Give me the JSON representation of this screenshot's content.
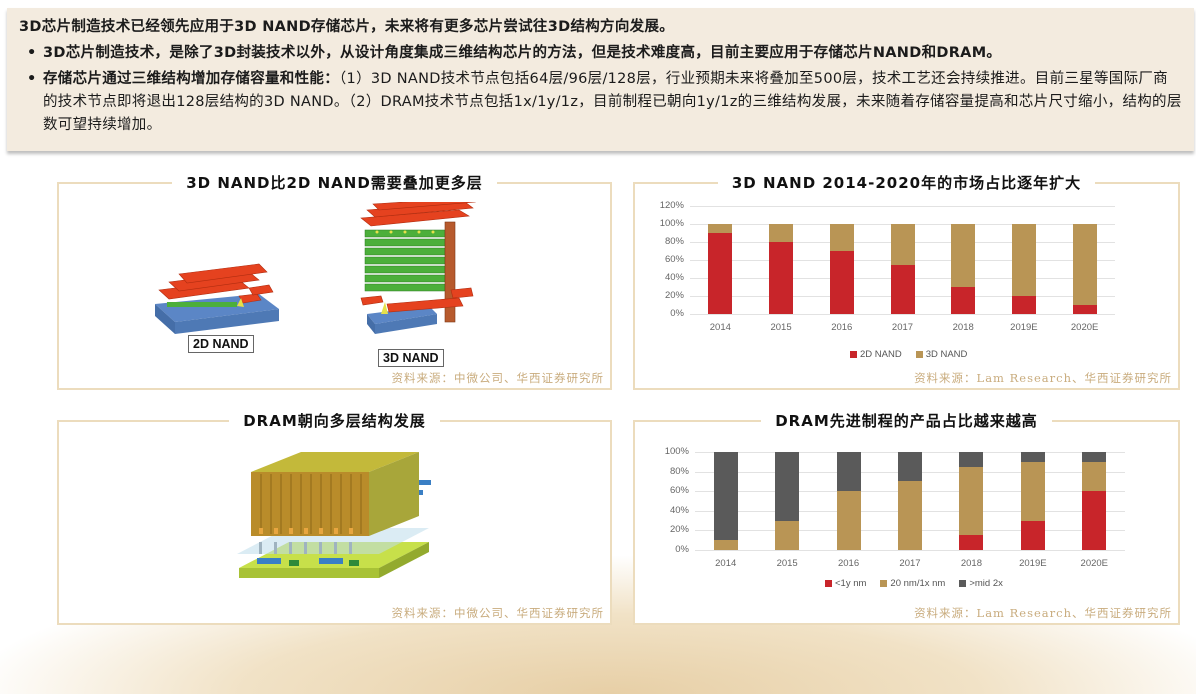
{
  "summary": {
    "lead": "3D芯片制造技术已经领先应用于3D NAND存储芯片，未来将有更多芯片尝试往3D结构方向发展。",
    "bullets": [
      {
        "bold": "3D芯片制造技术，是除了3D封装技术以外，从设计角度集成三维结构芯片的方法，但是技术难度高，目前主要应用于存储芯片NAND和DRAM。",
        "text": ""
      },
      {
        "bold": "存储芯片通过三维结构增加存储容量和性能：",
        "text": "（1）3D NAND技术节点包括64层/96层/128层，行业预期未来将叠加至500层，技术工艺还会持续推进。目前三星等国际厂商的技术节点即将退出128层结构的3D NAND。（2）DRAM技术节点包括1x/1y/1z，目前制程已朝向1y/1z的三维结构发展，未来随着存储容量提高和芯片尺寸缩小，结构的层数可望持续增加。"
      }
    ]
  },
  "panels": {
    "nand_diagram": {
      "title": "3D NAND比2D NAND需要叠加更多层",
      "label_2d": "2D NAND",
      "label_3d": "3D NAND",
      "source": "资料来源：中微公司、华西证券研究所"
    },
    "nand_chart": {
      "title": "3D NAND 2014-2020年的市场占比逐年扩大",
      "source": "资料来源：Lam Research、华西证券研究所"
    },
    "dram_diagram": {
      "title": "DRAM朝向多层结构发展",
      "source": "资料来源：中微公司、华西证券研究所"
    },
    "dram_chart": {
      "title": "DRAM先进制程的产品占比越来越高",
      "source": "资料来源：Lam Research、华西证券研究所"
    }
  },
  "chart_data": [
    {
      "type": "bar",
      "stacked": true,
      "title": "3D NAND 2014-2020年的市场占比逐年扩大",
      "categories": [
        "2014",
        "2015",
        "2016",
        "2017",
        "2018",
        "2019E",
        "2020E"
      ],
      "series": [
        {
          "name": "2D NAND",
          "color": "#c8252a",
          "values": [
            90,
            80,
            70,
            55,
            30,
            20,
            10
          ]
        },
        {
          "name": "3D NAND",
          "color": "#b99555",
          "values": [
            10,
            20,
            30,
            45,
            70,
            80,
            90
          ]
        }
      ],
      "yticks": [
        "0%",
        "20%",
        "40%",
        "60%",
        "80%",
        "100%",
        "120%"
      ],
      "ylim": [
        0,
        120
      ],
      "xlabel": "",
      "ylabel": "",
      "grid": true,
      "legend_position": "bottom"
    },
    {
      "type": "bar",
      "stacked": true,
      "title": "DRAM先进制程的产品占比越来越高",
      "categories": [
        "2014",
        "2015",
        "2016",
        "2017",
        "2018",
        "2019E",
        "2020E"
      ],
      "series": [
        {
          "name": "<1y nm",
          "color": "#c8252a",
          "values": [
            0,
            0,
            0,
            0,
            15,
            30,
            60
          ]
        },
        {
          "name": "20 nm/1x nm",
          "color": "#b99555",
          "values": [
            10,
            30,
            60,
            70,
            70,
            60,
            30
          ]
        },
        {
          "name": ">mid 2x",
          "color": "#5a5a5a",
          "values": [
            90,
            70,
            40,
            30,
            15,
            10,
            10
          ]
        }
      ],
      "yticks": [
        "0%",
        "20%",
        "40%",
        "60%",
        "80%",
        "100%"
      ],
      "ylim": [
        0,
        100
      ],
      "xlabel": "",
      "ylabel": "",
      "grid": true,
      "legend_position": "bottom"
    }
  ]
}
